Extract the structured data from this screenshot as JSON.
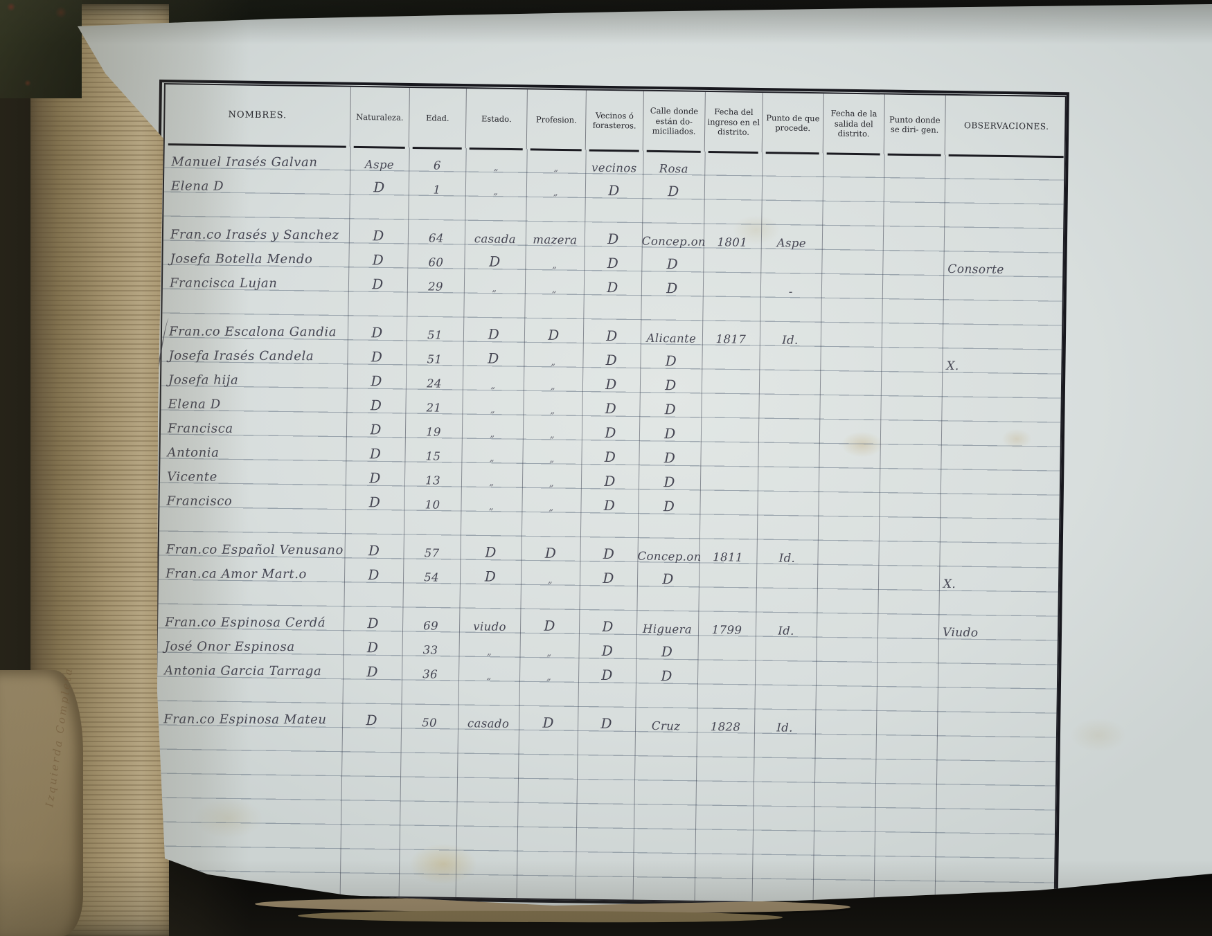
{
  "page": {
    "margin_note": "Izquierda Completa"
  },
  "table": {
    "headers": [
      "NOMBRES.",
      "Naturaleza.",
      "Edad.",
      "Estado.",
      "Profesion.",
      "Vecinos ó forasteros.",
      "Calle donde están do- miciliados.",
      "Fecha del ingreso en el distrito.",
      "Punto de que procede.",
      "Fecha de la salida del distrito.",
      "Punto donde se diri- gen.",
      "OBSERVACIONES."
    ],
    "rows": [
      {
        "line": 0,
        "name": "Manuel Irasés Galvan",
        "naturaleza": "Aspe",
        "edad": "6",
        "estado": "„",
        "profesion": "„",
        "vecinos": "vecinos",
        "calle": "Rosa"
      },
      {
        "line": 1,
        "name": "Elena D",
        "naturaleza": "D",
        "edad": "1",
        "estado": "„",
        "profesion": "„",
        "vecinos": "D",
        "calle": "D"
      },
      {
        "line": 3,
        "name": "Fran.co Irasés y Sanchez",
        "naturaleza": "D",
        "edad": "64",
        "estado": "casada",
        "profesion": "mazera",
        "vecinos": "D",
        "calle": "Concep.on",
        "fecha_ingreso": "1801",
        "punto_procede": "Aspe"
      },
      {
        "line": 4,
        "name": "Josefa Botella Mendo",
        "naturaleza": "D",
        "edad": "60",
        "estado": "D",
        "profesion": "„",
        "vecinos": "D",
        "calle": "D",
        "observaciones": "Consorte"
      },
      {
        "line": 5,
        "name": "Francisca Lujan",
        "naturaleza": "D",
        "edad": "29",
        "estado": "„",
        "profesion": "„",
        "vecinos": "D",
        "calle": "D",
        "punto_procede": "-"
      },
      {
        "line": 7,
        "name": "Fran.co Escalona Gandia",
        "naturaleza": "D",
        "edad": "51",
        "estado": "D",
        "profesion": "D",
        "vecinos": "D",
        "calle": "Alicante",
        "fecha_ingreso": "1817",
        "punto_procede": "Id."
      },
      {
        "line": 8,
        "name": "Josefa Irasés Candela",
        "naturaleza": "D",
        "edad": "51",
        "estado": "D",
        "profesion": "„",
        "vecinos": "D",
        "calle": "D",
        "observaciones": "X."
      },
      {
        "line": 9,
        "name": "Josefa hija",
        "naturaleza": "D",
        "edad": "24",
        "estado": "„",
        "profesion": "„",
        "vecinos": "D",
        "calle": "D"
      },
      {
        "line": 10,
        "name": "Elena D",
        "naturaleza": "D",
        "edad": "21",
        "estado": "„",
        "profesion": "„",
        "vecinos": "D",
        "calle": "D"
      },
      {
        "line": 11,
        "name": "Francisca",
        "naturaleza": "D",
        "edad": "19",
        "estado": "„",
        "profesion": "„",
        "vecinos": "D",
        "calle": "D"
      },
      {
        "line": 12,
        "name": "Antonia",
        "naturaleza": "D",
        "edad": "15",
        "estado": "„",
        "profesion": "„",
        "vecinos": "D",
        "calle": "D"
      },
      {
        "line": 13,
        "name": "Vicente",
        "naturaleza": "D",
        "edad": "13",
        "estado": "„",
        "profesion": "„",
        "vecinos": "D",
        "calle": "D"
      },
      {
        "line": 14,
        "name": "Francisco",
        "naturaleza": "D",
        "edad": "10",
        "estado": "„",
        "profesion": "„",
        "vecinos": "D",
        "calle": "D"
      },
      {
        "line": 16,
        "name": "Fran.co Español Venusano",
        "naturaleza": "D",
        "edad": "57",
        "estado": "D",
        "profesion": "D",
        "vecinos": "D",
        "calle": "Concep.on",
        "fecha_ingreso": "1811",
        "punto_procede": "Id."
      },
      {
        "line": 17,
        "name": "Fran.ca Amor Mart.o",
        "naturaleza": "D",
        "edad": "54",
        "estado": "D",
        "profesion": "„",
        "vecinos": "D",
        "calle": "D",
        "observaciones": "X."
      },
      {
        "line": 19,
        "name": "Fran.co Espinosa Cerdá",
        "naturaleza": "D",
        "edad": "69",
        "estado": "viudo",
        "profesion": "D",
        "vecinos": "D",
        "calle": "Higuera",
        "fecha_ingreso": "1799",
        "punto_procede": "Id.",
        "observaciones": "Viudo"
      },
      {
        "line": 20,
        "name": "José Onor Espinosa",
        "naturaleza": "D",
        "edad": "33",
        "estado": "„",
        "profesion": "„",
        "vecinos": "D",
        "calle": "D"
      },
      {
        "line": 21,
        "name": "Antonia Garcia Tarraga",
        "naturaleza": "D",
        "edad": "36",
        "estado": "„",
        "profesion": "„",
        "vecinos": "D",
        "calle": "D"
      },
      {
        "line": 23,
        "name": "Fran.co Espinosa Mateu",
        "naturaleza": "D",
        "edad": "50",
        "estado": "casado",
        "profesion": "D",
        "vecinos": "D",
        "calle": "Cruz",
        "fecha_ingreso": "1828",
        "punto_procede": "Id."
      }
    ],
    "margin_groups": [
      {
        "count": "2",
        "line_start": 0,
        "line_end": 1
      },
      {
        "count": "3",
        "line_start": 3,
        "line_end": 5
      },
      {
        "count": "8",
        "line_start": 7,
        "line_end": 14
      },
      {
        "count": "2",
        "line_start": 16,
        "line_end": 17
      },
      {
        "count": "3",
        "line_start": 19,
        "line_end": 21
      },
      {
        "count": "1",
        "line_start": 23,
        "line_end": 23
      }
    ]
  }
}
